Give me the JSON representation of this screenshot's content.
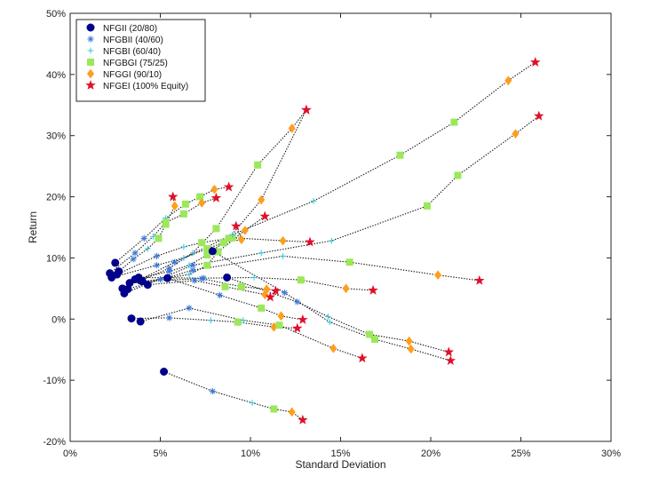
{
  "chart_data": {
    "type": "scatter",
    "title": "",
    "xlabel": "Standard Deviation",
    "ylabel": "Return",
    "xlim": [
      0,
      30
    ],
    "ylim": [
      -20,
      50
    ],
    "x_ticks": [
      "0%",
      "5%",
      "10%",
      "15%",
      "20%",
      "25%",
      "30%"
    ],
    "y_ticks": [
      "-20%",
      "-10%",
      "0%",
      "10%",
      "20%",
      "30%",
      "40%",
      "50%"
    ],
    "grid": false,
    "legend_position": "top-left",
    "series": [
      {
        "name": "NFGII (20/80)",
        "marker": "filled-circle",
        "color": "#00008b"
      },
      {
        "name": "NFGBII (40/60)",
        "marker": "asterisk",
        "color": "#3a78d8"
      },
      {
        "name": "NFGBI (60/40)",
        "marker": "plus",
        "color": "#37c6e0"
      },
      {
        "name": "NFGBGI (75/25)",
        "marker": "square",
        "color": "#9be85a"
      },
      {
        "name": "NFGGI (90/10)",
        "marker": "diamond",
        "color": "#ff9d1c"
      },
      {
        "name": "NFGEI (100% Equity)",
        "marker": "pentagram",
        "color": "#e0102a"
      }
    ],
    "paths": [
      {
        "points": [
          [
            2.5,
            9.2
          ],
          [
            4.1,
            13.2
          ],
          [
            5.3,
            16.5
          ],
          [
            6.4,
            18.8
          ],
          [
            7.2,
            20.0
          ],
          [
            8.0,
            21.2
          ],
          [
            8.8,
            21.6
          ]
        ]
      },
      {
        "points": [
          [
            2.2,
            7.5
          ],
          [
            3.6,
            10.8
          ],
          [
            4.6,
            13.5
          ],
          [
            5.3,
            15.8
          ],
          [
            6.3,
            17.2
          ],
          [
            7.3,
            19.0
          ],
          [
            8.1,
            19.8
          ]
        ]
      },
      {
        "points": [
          [
            2.7,
            7.8
          ],
          [
            3.5,
            9.8
          ],
          [
            4.3,
            11.5
          ],
          [
            4.9,
            13.2
          ],
          [
            5.3,
            15.5
          ],
          [
            5.8,
            18.5
          ],
          [
            5.7,
            20.0
          ]
        ]
      },
      {
        "points": [
          [
            2.6,
            7.3
          ],
          [
            4.8,
            10.3
          ],
          [
            6.3,
            11.8
          ],
          [
            7.3,
            12.5
          ],
          [
            9.0,
            13.3
          ],
          [
            11.8,
            12.8
          ],
          [
            13.3,
            12.6
          ]
        ]
      },
      {
        "points": [
          [
            2.3,
            6.8
          ],
          [
            4.8,
            8.8
          ],
          [
            6.3,
            10.0
          ],
          [
            7.6,
            11.5
          ],
          [
            8.5,
            12.5
          ],
          [
            9.5,
            13.0
          ],
          [
            9.2,
            15.2
          ]
        ]
      },
      {
        "points": [
          [
            3.3,
            5.9
          ],
          [
            5.0,
            6.5
          ],
          [
            6.6,
            7.3
          ],
          [
            7.6,
            8.8
          ],
          [
            8.2,
            11.0
          ],
          [
            9.7,
            14.5
          ],
          [
            10.8,
            16.8
          ]
        ]
      },
      {
        "points": [
          [
            3.6,
            6.5
          ],
          [
            5.5,
            7.8
          ],
          [
            6.6,
            8.8
          ],
          [
            7.6,
            10.5
          ],
          [
            8.8,
            13.2
          ],
          [
            10.6,
            19.5
          ],
          [
            13.1,
            34.2
          ]
        ]
      },
      {
        "points": [
          [
            3.9,
            6.3
          ],
          [
            5.5,
            8.3
          ],
          [
            6.8,
            10.8
          ],
          [
            8.1,
            14.8
          ],
          [
            10.4,
            25.2
          ],
          [
            12.3,
            31.2
          ],
          [
            13.1,
            34.2
          ]
        ]
      },
      {
        "points": [
          [
            2.9,
            5.0
          ],
          [
            5.8,
            9.3
          ],
          [
            9.0,
            13.8
          ],
          [
            13.5,
            19.3
          ],
          [
            18.3,
            26.8
          ],
          [
            21.3,
            32.2
          ],
          [
            24.3,
            39.0
          ],
          [
            25.8,
            42.0
          ]
        ]
      },
      {
        "points": [
          [
            3.0,
            4.2
          ],
          [
            6.8,
            8.8
          ],
          [
            10.6,
            10.8
          ],
          [
            14.5,
            12.8
          ],
          [
            19.8,
            18.5
          ],
          [
            21.5,
            23.5
          ],
          [
            24.7,
            30.3
          ],
          [
            26.0,
            33.2
          ]
        ]
      },
      {
        "points": [
          [
            3.2,
            4.9
          ],
          [
            6.8,
            8.0
          ],
          [
            11.8,
            10.3
          ],
          [
            15.5,
            9.3
          ],
          [
            20.4,
            7.2
          ],
          [
            22.7,
            6.3
          ]
        ]
      },
      {
        "points": [
          [
            3.8,
            6.8
          ],
          [
            7.4,
            6.7
          ],
          [
            10.2,
            6.8
          ],
          [
            12.8,
            6.4
          ],
          [
            15.3,
            5.0
          ],
          [
            16.8,
            4.7
          ]
        ]
      },
      {
        "points": [
          [
            4.0,
            6.2
          ],
          [
            7.3,
            6.6
          ],
          [
            9.5,
            5.3
          ],
          [
            10.9,
            4.9
          ],
          [
            11.4,
            4.6
          ]
        ]
      },
      {
        "points": [
          [
            4.3,
            5.6
          ],
          [
            6.9,
            6.3
          ],
          [
            8.6,
            5.3
          ],
          [
            10.8,
            4.0
          ],
          [
            11.1,
            3.6
          ]
        ]
      },
      {
        "points": [
          [
            8.7,
            6.8
          ],
          [
            12.6,
            2.8
          ],
          [
            14.3,
            0.4
          ],
          [
            16.6,
            -2.5
          ],
          [
            18.8,
            -3.6
          ],
          [
            21.0,
            -5.4
          ]
        ]
      },
      {
        "points": [
          [
            7.9,
            11.1
          ],
          [
            11.9,
            4.3
          ],
          [
            14.4,
            -0.5
          ],
          [
            16.9,
            -3.3
          ],
          [
            18.9,
            -4.9
          ],
          [
            21.1,
            -6.8
          ]
        ]
      },
      {
        "points": [
          [
            3.4,
            0.1
          ],
          [
            5.5,
            0.2
          ],
          [
            7.8,
            -0.2
          ],
          [
            9.3,
            -0.5
          ],
          [
            11.3,
            -1.3
          ],
          [
            12.6,
            -1.5
          ]
        ]
      },
      {
        "points": [
          [
            3.9,
            -0.4
          ],
          [
            6.6,
            1.8
          ],
          [
            9.6,
            -0.2
          ],
          [
            11.6,
            -1.0
          ],
          [
            14.6,
            -4.8
          ],
          [
            16.2,
            -6.4
          ]
        ]
      },
      {
        "points": [
          [
            5.4,
            6.7
          ],
          [
            8.3,
            3.9
          ],
          [
            10.6,
            1.8
          ],
          [
            11.7,
            0.5
          ],
          [
            12.9,
            -0.1
          ]
        ]
      },
      {
        "points": [
          [
            5.2,
            -8.6
          ],
          [
            7.9,
            -11.8
          ],
          [
            10.1,
            -13.7
          ],
          [
            11.3,
            -14.7
          ],
          [
            12.3,
            -15.2
          ],
          [
            12.9,
            -16.5
          ]
        ]
      }
    ]
  }
}
